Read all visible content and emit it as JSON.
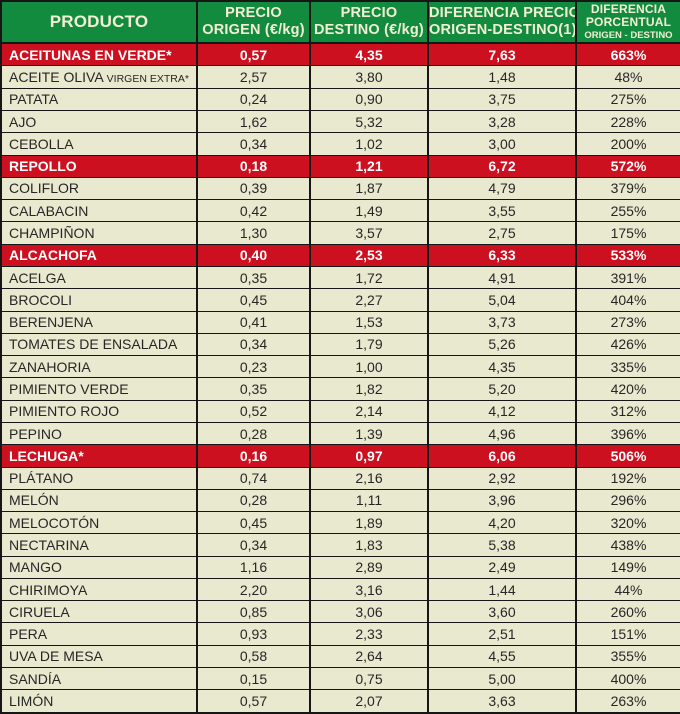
{
  "chart_data": {
    "type": "table",
    "columns": [
      {
        "id": "producto",
        "lines": [
          "PRODUCTO"
        ]
      },
      {
        "id": "precio-origen",
        "lines": [
          "PRECIO",
          "ORIGEN (€/kg)"
        ]
      },
      {
        "id": "precio-destino",
        "lines": [
          "PRECIO",
          "DESTINO (€/kg)"
        ]
      },
      {
        "id": "diferencia-precio",
        "lines": [
          "DIFERENCIA PRECIO",
          "ORIGEN-DESTINO(1)"
        ]
      },
      {
        "id": "diferencia-porcentual",
        "lines": [
          "DIFERENCIA",
          "PORCENTUAL"
        ],
        "subline": "ORIGEN - DESTINO"
      }
    ],
    "rows": [
      {
        "product": "ACEITUNAS EN VERDE*",
        "origen": "0,57",
        "destino": "4,35",
        "diferencia": "7,63",
        "porcentual": "663%",
        "highlight": true
      },
      {
        "product": "ACEITE OLIVA",
        "product_small": "VIRGEN EXTRA*",
        "origen": "2,57",
        "destino": "3,80",
        "diferencia": "1,48",
        "porcentual": "48%",
        "highlight": false
      },
      {
        "product": "PATATA",
        "origen": "0,24",
        "destino": "0,90",
        "diferencia": "3,75",
        "porcentual": "275%",
        "highlight": false
      },
      {
        "product": "AJO",
        "origen": "1,62",
        "destino": "5,32",
        "diferencia": "3,28",
        "porcentual": "228%",
        "highlight": false
      },
      {
        "product": "CEBOLLA",
        "origen": "0,34",
        "destino": "1,02",
        "diferencia": "3,00",
        "porcentual": "200%",
        "highlight": false
      },
      {
        "product": "REPOLLO",
        "origen": "0,18",
        "destino": "1,21",
        "diferencia": "6,72",
        "porcentual": "572%",
        "highlight": true
      },
      {
        "product": "COLIFLOR",
        "origen": "0,39",
        "destino": "1,87",
        "diferencia": "4,79",
        "porcentual": "379%",
        "highlight": false
      },
      {
        "product": "CALABACIN",
        "origen": "0,42",
        "destino": "1,49",
        "diferencia": "3,55",
        "porcentual": "255%",
        "highlight": false
      },
      {
        "product": "CHAMPIÑON",
        "origen": "1,30",
        "destino": "3,57",
        "diferencia": "2,75",
        "porcentual": "175%",
        "highlight": false
      },
      {
        "product": "ALCACHOFA",
        "origen": "0,40",
        "destino": "2,53",
        "diferencia": "6,33",
        "porcentual": "533%",
        "highlight": true
      },
      {
        "product": "ACELGA",
        "origen": "0,35",
        "destino": "1,72",
        "diferencia": "4,91",
        "porcentual": "391%",
        "highlight": false
      },
      {
        "product": "BROCOLI",
        "origen": "0,45",
        "destino": "2,27",
        "diferencia": "5,04",
        "porcentual": "404%",
        "highlight": false
      },
      {
        "product": "BERENJENA",
        "origen": "0,41",
        "destino": "1,53",
        "diferencia": "3,73",
        "porcentual": "273%",
        "highlight": false
      },
      {
        "product": "TOMATES DE ENSALADA",
        "origen": "0,34",
        "destino": "1,79",
        "diferencia": "5,26",
        "porcentual": "426%",
        "highlight": false
      },
      {
        "product": "ZANAHORIA",
        "origen": "0,23",
        "destino": "1,00",
        "diferencia": "4,35",
        "porcentual": "335%",
        "highlight": false
      },
      {
        "product": "PIMIENTO VERDE",
        "origen": "0,35",
        "destino": "1,82",
        "diferencia": "5,20",
        "porcentual": "420%",
        "highlight": false
      },
      {
        "product": "PIMIENTO ROJO",
        "origen": "0,52",
        "destino": "2,14",
        "diferencia": "4,12",
        "porcentual": "312%",
        "highlight": false
      },
      {
        "product": "PEPINO",
        "origen": "0,28",
        "destino": "1,39",
        "diferencia": "4,96",
        "porcentual": "396%",
        "highlight": false
      },
      {
        "product": "LECHUGA*",
        "origen": "0,16",
        "destino": "0,97",
        "diferencia": "6,06",
        "porcentual": "506%",
        "highlight": true
      },
      {
        "product": "PLÁTANO",
        "origen": "0,74",
        "destino": "2,16",
        "diferencia": "2,92",
        "porcentual": "192%",
        "highlight": false
      },
      {
        "product": "MELÓN",
        "origen": "0,28",
        "destino": "1,11",
        "diferencia": "3,96",
        "porcentual": "296%",
        "highlight": false
      },
      {
        "product": "MELOCOTÓN",
        "origen": "0,45",
        "destino": "1,89",
        "diferencia": "4,20",
        "porcentual": "320%",
        "highlight": false
      },
      {
        "product": "NECTARINA",
        "origen": "0,34",
        "destino": "1,83",
        "diferencia": "5,38",
        "porcentual": "438%",
        "highlight": false
      },
      {
        "product": "MANGO",
        "origen": "1,16",
        "destino": "2,89",
        "diferencia": "2,49",
        "porcentual": "149%",
        "highlight": false
      },
      {
        "product": "CHIRIMOYA",
        "origen": "2,20",
        "destino": "3,16",
        "diferencia": "1,44",
        "porcentual": "44%",
        "highlight": false
      },
      {
        "product": "CIRUELA",
        "origen": "0,85",
        "destino": "3,06",
        "diferencia": "3,60",
        "porcentual": "260%",
        "highlight": false
      },
      {
        "product": "PERA",
        "origen": "0,93",
        "destino": "2,33",
        "diferencia": "2,51",
        "porcentual": "151%",
        "highlight": false
      },
      {
        "product": "UVA DE MESA",
        "origen": "0,58",
        "destino": "2,64",
        "diferencia": "4,55",
        "porcentual": "355%",
        "highlight": false
      },
      {
        "product": "SANDÍA",
        "origen": "0,15",
        "destino": "0,75",
        "diferencia": "5,00",
        "porcentual": "400%",
        "highlight": false
      },
      {
        "product": "LIMÓN",
        "origen": "0,57",
        "destino": "2,07",
        "diferencia": "3,63",
        "porcentual": "263%",
        "highlight": false
      }
    ],
    "colors": {
      "header_green": "#128b3e",
      "highlight_red": "#cc1020",
      "row_cream": "#e9e9d0",
      "header_text": "#f3efd5",
      "border": "#161616"
    }
  }
}
